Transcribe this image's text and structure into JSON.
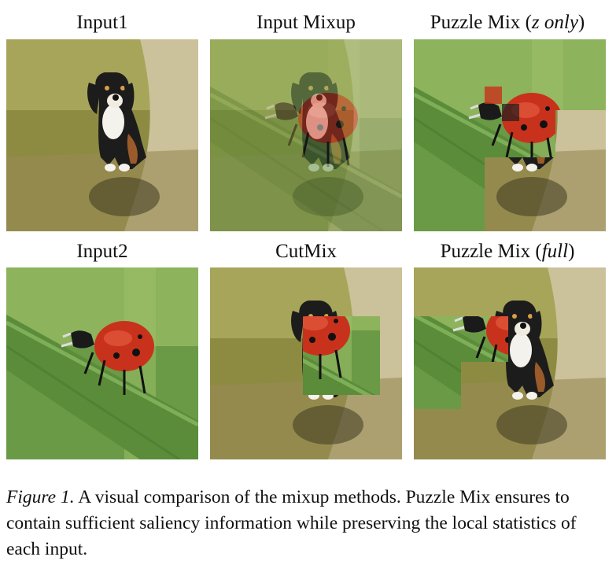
{
  "titles": {
    "input1": "Input1",
    "input_mixup": "Input Mixup",
    "puzzle_z_main": "Puzzle Mix",
    "puzzle_z_paren_open": "(",
    "puzzle_z_variant": "z only",
    "puzzle_z_paren_close": ")",
    "input2": "Input2",
    "cutmix": "CutMix",
    "puzzle_full_main": "Puzzle Mix",
    "puzzle_full_paren_open": "(",
    "puzzle_full_variant": "full",
    "puzzle_full_paren_close": ")"
  },
  "caption": {
    "figure_label": "Figure 1.",
    "text": "A visual comparison of the mixup methods. Puzzle Mix ensures to contain sufficient saliency information while preserving the local statistics of each input."
  },
  "colors": {
    "grass": "#8b8a3e",
    "path": "#c9bf98",
    "leaf": "#4f8a3a",
    "ladybug": "#c8321c",
    "dog_body": "#1c1c1c"
  }
}
